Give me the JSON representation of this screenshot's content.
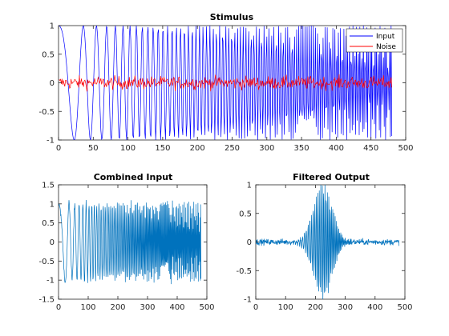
{
  "chart_data": [
    {
      "type": "line",
      "title": "Stimulus",
      "xlim": [
        0,
        500
      ],
      "ylim": [
        -1,
        1
      ],
      "xticks": [
        0,
        50,
        100,
        150,
        200,
        250,
        300,
        350,
        400,
        450,
        500
      ],
      "yticks": [
        -1,
        -0.5,
        0,
        0.5,
        1
      ],
      "grid": false,
      "legend": "top-right",
      "series": [
        {
          "name": "Input",
          "color": "#0000ff",
          "shape": "chirp",
          "amplitude": 1.0,
          "x_range": [
            1,
            480
          ]
        },
        {
          "name": "Noise",
          "color": "#ff0000",
          "shape": "noise",
          "amplitude": 0.2,
          "x_range": [
            1,
            480
          ]
        }
      ]
    },
    {
      "type": "line",
      "title": "Combined Input",
      "xlim": [
        0,
        500
      ],
      "ylim": [
        -1.5,
        1.5
      ],
      "xticks": [
        0,
        100,
        200,
        300,
        400,
        500
      ],
      "yticks": [
        -1.5,
        -1,
        -0.5,
        0,
        0.5,
        1,
        1.5
      ],
      "grid": false,
      "series": [
        {
          "color": "#0072bd",
          "shape": "chirp+noise",
          "amplitude": 1.15,
          "x_range": [
            1,
            480
          ]
        }
      ]
    },
    {
      "type": "line",
      "title": "Filtered Output",
      "xlim": [
        0,
        500
      ],
      "ylim": [
        -1,
        1
      ],
      "xticks": [
        0,
        100,
        200,
        300,
        400,
        500
      ],
      "yticks": [
        -1,
        -0.5,
        0,
        0.5,
        1
      ],
      "grid": false,
      "series": [
        {
          "color": "#0072bd",
          "shape": "bandpass-burst",
          "peak_x": 225,
          "peak_amplitude": 1.0,
          "baseline_noise": 0.05,
          "x_range": [
            1,
            480
          ]
        }
      ]
    }
  ]
}
